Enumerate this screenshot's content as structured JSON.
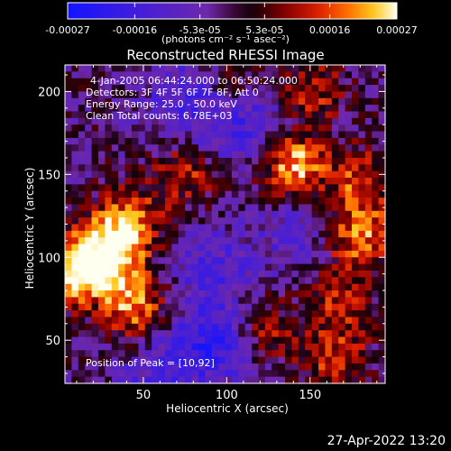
{
  "title": "Reconstructed RHESSI Image",
  "colorbar": {
    "ticks": [
      "-0.00027",
      "-0.00016",
      "-5.3e-05",
      "5.3e-05",
      "0.00016",
      "0.00027"
    ],
    "tick_values": [
      -0.00027,
      -0.00016,
      -5.3e-05,
      5.3e-05,
      0.00016,
      0.00027
    ],
    "units": "(photons cm⁻² s⁻¹ asec⁻²)",
    "range": [
      -0.00027,
      0.00027
    ]
  },
  "annotations": {
    "time": "4-Jan-2005 06:44:24.000 to 06:50:24.000",
    "detectors": "Detectors: 3F 4F 5F 6F 7F 8F, Att 0",
    "energy": "Energy Range: 25.0 - 50.0 keV",
    "algorithm": "Clean      Total counts: 6.78E+03",
    "peak": "Position of Peak = [10,92]"
  },
  "footer_date": "27-Apr-2022 13:20",
  "chart_data": {
    "type": "heatmap",
    "title": "Reconstructed RHESSI Image",
    "xlabel": "Heliocentric X (arcsec)",
    "ylabel": "Heliocentric Y (arcsec)",
    "xlim": [
      3,
      195
    ],
    "ylim": [
      24,
      216
    ],
    "xticks": [
      50,
      100,
      150
    ],
    "yticks": [
      50,
      100,
      150,
      200
    ],
    "colormap": "red-temperature (blue negative, purple near zero, red/yellow/white positive)",
    "value_range": [
      -0.00027,
      0.00027
    ],
    "peak_position": [
      10,
      92
    ],
    "bright_regions": [
      {
        "x": 10,
        "y": 92,
        "level": 1.0
      },
      {
        "x": 140,
        "y": 155,
        "level": 0.95
      },
      {
        "x": 40,
        "y": 120,
        "level": 0.85
      },
      {
        "x": 28,
        "y": 100,
        "level": 0.8
      },
      {
        "x": 45,
        "y": 70,
        "level": 0.8
      },
      {
        "x": 180,
        "y": 112,
        "level": 0.75
      },
      {
        "x": 105,
        "y": 200,
        "level": 0.55
      },
      {
        "x": 150,
        "y": 200,
        "level": 0.5
      },
      {
        "x": 180,
        "y": 145,
        "level": 0.6
      },
      {
        "x": 120,
        "y": 55,
        "level": 0.55
      },
      {
        "x": 165,
        "y": 40,
        "level": 0.55
      },
      {
        "x": 75,
        "y": 150,
        "level": 0.5
      },
      {
        "x": 165,
        "y": 75,
        "level": 0.45
      }
    ],
    "dark_regions": [
      {
        "x": 110,
        "y": 185,
        "level": -0.7
      },
      {
        "x": 95,
        "y": 50,
        "level": -0.7
      },
      {
        "x": 75,
        "y": 195,
        "level": -0.45
      },
      {
        "x": 90,
        "y": 95,
        "level": -0.4
      },
      {
        "x": 140,
        "y": 115,
        "level": -0.35
      },
      {
        "x": 60,
        "y": 30,
        "level": -0.4
      }
    ]
  }
}
